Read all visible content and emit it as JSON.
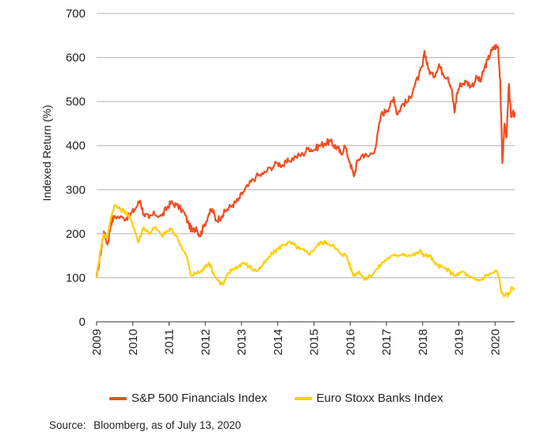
{
  "chart_data": {
    "type": "line",
    "ylabel": "Indexed Return (%)",
    "xlabel": "",
    "ylim": [
      0,
      700
    ],
    "xlim": [
      2009.0,
      2020.54
    ],
    "yticks": [
      0,
      100,
      200,
      300,
      400,
      500,
      600,
      700
    ],
    "xticks": [
      "2009",
      "2010",
      "2011",
      "2012",
      "2013",
      "2014",
      "2015",
      "2016",
      "2017",
      "2018",
      "2019",
      "2020"
    ],
    "grid": "horizontal",
    "legend_position": "bottom",
    "series": [
      {
        "name": "S&P 500 Financials Index",
        "color": "#f04e23",
        "points": [
          [
            2009.0,
            100
          ],
          [
            2009.1,
            150
          ],
          [
            2009.2,
            205
          ],
          [
            2009.3,
            175
          ],
          [
            2009.4,
            225
          ],
          [
            2009.5,
            240
          ],
          [
            2009.75,
            235
          ],
          [
            2009.9,
            240
          ],
          [
            2010.05,
            255
          ],
          [
            2010.2,
            275
          ],
          [
            2010.3,
            245
          ],
          [
            2010.45,
            235
          ],
          [
            2010.6,
            245
          ],
          [
            2010.8,
            240
          ],
          [
            2010.95,
            260
          ],
          [
            2011.05,
            270
          ],
          [
            2011.2,
            265
          ],
          [
            2011.4,
            250
          ],
          [
            2011.55,
            220
          ],
          [
            2011.65,
            205
          ],
          [
            2011.75,
            215
          ],
          [
            2011.85,
            195
          ],
          [
            2011.95,
            215
          ],
          [
            2012.1,
            245
          ],
          [
            2012.2,
            255
          ],
          [
            2012.3,
            230
          ],
          [
            2012.45,
            240
          ],
          [
            2012.6,
            255
          ],
          [
            2012.75,
            265
          ],
          [
            2012.9,
            275
          ],
          [
            2013.05,
            295
          ],
          [
            2013.2,
            310
          ],
          [
            2013.4,
            330
          ],
          [
            2013.6,
            335
          ],
          [
            2013.8,
            350
          ],
          [
            2014.0,
            360
          ],
          [
            2014.15,
            355
          ],
          [
            2014.3,
            365
          ],
          [
            2014.5,
            375
          ],
          [
            2014.7,
            380
          ],
          [
            2014.85,
            395
          ],
          [
            2015.0,
            390
          ],
          [
            2015.15,
            400
          ],
          [
            2015.3,
            405
          ],
          [
            2015.45,
            410
          ],
          [
            2015.55,
            400
          ],
          [
            2015.65,
            395
          ],
          [
            2015.75,
            380
          ],
          [
            2015.85,
            400
          ],
          [
            2016.0,
            360
          ],
          [
            2016.1,
            330
          ],
          [
            2016.2,
            365
          ],
          [
            2016.35,
            380
          ],
          [
            2016.5,
            375
          ],
          [
            2016.7,
            395
          ],
          [
            2016.85,
            470
          ],
          [
            2017.0,
            480
          ],
          [
            2017.1,
            490
          ],
          [
            2017.2,
            510
          ],
          [
            2017.3,
            470
          ],
          [
            2017.45,
            495
          ],
          [
            2017.6,
            500
          ],
          [
            2017.75,
            530
          ],
          [
            2017.9,
            560
          ],
          [
            2018.0,
            580
          ],
          [
            2018.05,
            615
          ],
          [
            2018.15,
            575
          ],
          [
            2018.3,
            555
          ],
          [
            2018.45,
            585
          ],
          [
            2018.55,
            565
          ],
          [
            2018.7,
            555
          ],
          [
            2018.8,
            530
          ],
          [
            2018.88,
            475
          ],
          [
            2018.95,
            520
          ],
          [
            2019.05,
            540
          ],
          [
            2019.2,
            545
          ],
          [
            2019.35,
            535
          ],
          [
            2019.5,
            555
          ],
          [
            2019.6,
            545
          ],
          [
            2019.7,
            575
          ],
          [
            2019.8,
            595
          ],
          [
            2019.9,
            615
          ],
          [
            2020.0,
            625
          ],
          [
            2020.08,
            625
          ],
          [
            2020.14,
            550
          ],
          [
            2020.2,
            360
          ],
          [
            2020.26,
            450
          ],
          [
            2020.32,
            420
          ],
          [
            2020.38,
            540
          ],
          [
            2020.44,
            465
          ],
          [
            2020.5,
            480
          ],
          [
            2020.54,
            465
          ]
        ]
      },
      {
        "name": "Euro Stoxx Banks Index",
        "color": "#ffce00",
        "points": [
          [
            2009.0,
            100
          ],
          [
            2009.1,
            160
          ],
          [
            2009.2,
            200
          ],
          [
            2009.3,
            190
          ],
          [
            2009.4,
            240
          ],
          [
            2009.5,
            265
          ],
          [
            2009.65,
            255
          ],
          [
            2009.8,
            250
          ],
          [
            2009.92,
            235
          ],
          [
            2010.05,
            210
          ],
          [
            2010.15,
            180
          ],
          [
            2010.3,
            215
          ],
          [
            2010.45,
            200
          ],
          [
            2010.6,
            215
          ],
          [
            2010.8,
            195
          ],
          [
            2010.95,
            205
          ],
          [
            2011.05,
            210
          ],
          [
            2011.2,
            195
          ],
          [
            2011.35,
            170
          ],
          [
            2011.5,
            145
          ],
          [
            2011.6,
            105
          ],
          [
            2011.75,
            110
          ],
          [
            2011.9,
            115
          ],
          [
            2012.0,
            125
          ],
          [
            2012.1,
            135
          ],
          [
            2012.25,
            105
          ],
          [
            2012.4,
            90
          ],
          [
            2012.5,
            85
          ],
          [
            2012.6,
            105
          ],
          [
            2012.75,
            120
          ],
          [
            2012.9,
            125
          ],
          [
            2013.05,
            135
          ],
          [
            2013.2,
            125
          ],
          [
            2013.4,
            115
          ],
          [
            2013.55,
            125
          ],
          [
            2013.7,
            140
          ],
          [
            2013.85,
            155
          ],
          [
            2014.0,
            165
          ],
          [
            2014.15,
            175
          ],
          [
            2014.3,
            180
          ],
          [
            2014.45,
            175
          ],
          [
            2014.6,
            165
          ],
          [
            2014.75,
            160
          ],
          [
            2014.9,
            155
          ],
          [
            2015.05,
            170
          ],
          [
            2015.2,
            180
          ],
          [
            2015.35,
            180
          ],
          [
            2015.5,
            175
          ],
          [
            2015.6,
            165
          ],
          [
            2015.75,
            155
          ],
          [
            2015.9,
            150
          ],
          [
            2016.0,
            125
          ],
          [
            2016.1,
            105
          ],
          [
            2016.25,
            115
          ],
          [
            2016.4,
            95
          ],
          [
            2016.55,
            105
          ],
          [
            2016.75,
            120
          ],
          [
            2016.9,
            135
          ],
          [
            2017.05,
            145
          ],
          [
            2017.25,
            150
          ],
          [
            2017.45,
            155
          ],
          [
            2017.65,
            150
          ],
          [
            2017.85,
            155
          ],
          [
            2017.95,
            160
          ],
          [
            2018.05,
            150
          ],
          [
            2018.2,
            150
          ],
          [
            2018.35,
            130
          ],
          [
            2018.5,
            125
          ],
          [
            2018.65,
            120
          ],
          [
            2018.8,
            110
          ],
          [
            2018.95,
            105
          ],
          [
            2019.1,
            115
          ],
          [
            2019.3,
            100
          ],
          [
            2019.45,
            95
          ],
          [
            2019.6,
            95
          ],
          [
            2019.75,
            105
          ],
          [
            2019.9,
            110
          ],
          [
            2020.05,
            115
          ],
          [
            2020.12,
            95
          ],
          [
            2020.18,
            65
          ],
          [
            2020.28,
            60
          ],
          [
            2020.38,
            62
          ],
          [
            2020.46,
            78
          ],
          [
            2020.54,
            75
          ]
        ]
      }
    ],
    "source_label": "Source:",
    "source_text": "Bloomberg, as of July 13, 2020"
  }
}
